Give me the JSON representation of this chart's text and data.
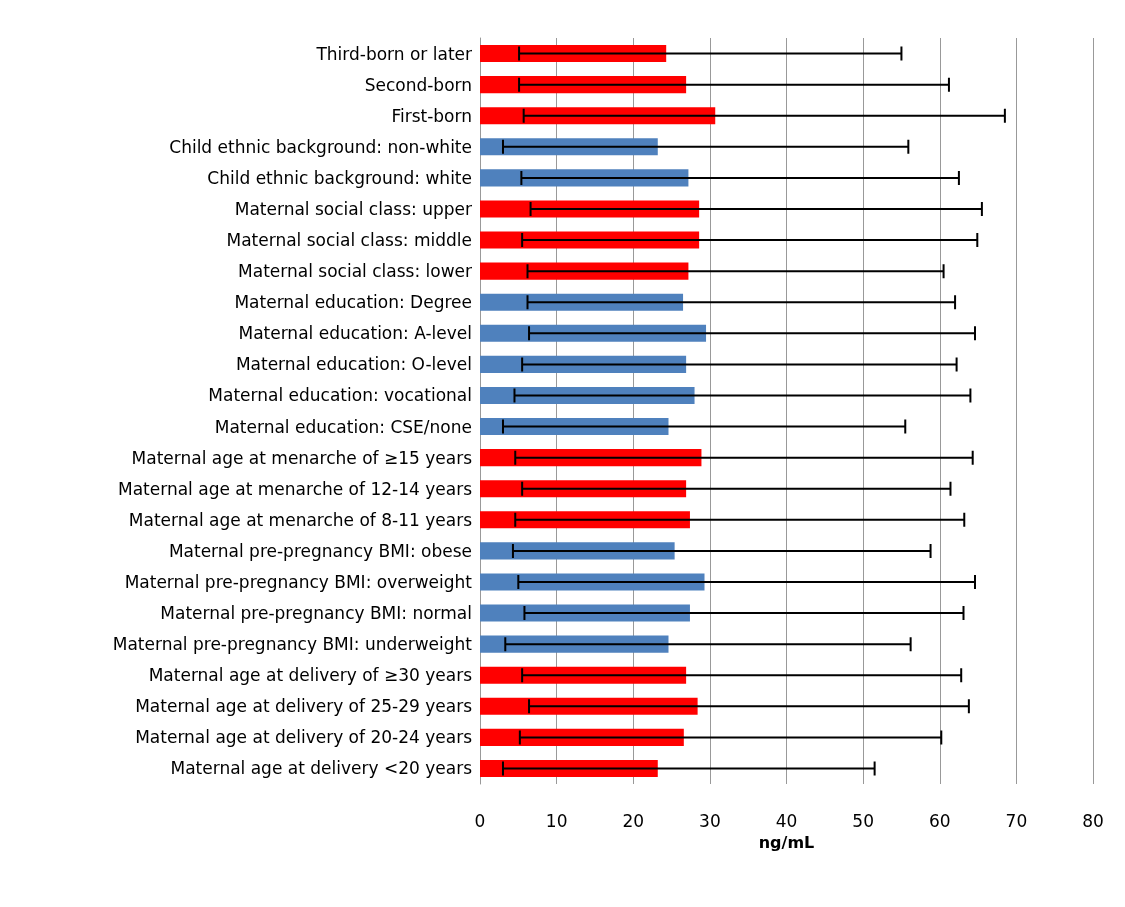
{
  "chart_data": {
    "type": "bar",
    "orientation": "horizontal",
    "xlabel": "ng/mL",
    "categories": [
      "Third-born or later",
      "Second-born",
      "First-born",
      "Child ethnic background: non-white",
      "Child ethnic background: white",
      "Maternal social class: upper",
      "Maternal social class: middle",
      "Maternal social class: lower",
      "Maternal education: Degree",
      "Maternal education: A-level",
      "Maternal education: O-level",
      "Maternal education: vocational",
      "Maternal education: CSE/none",
      "Maternal age at menarche of ≥15 years",
      "Maternal age at menarche of 12-14 years",
      "Maternal age at menarche of 8-11 years",
      "Maternal pre-pregnancy BMI: obese",
      "Maternal pre-pregnancy BMI: overweight",
      "Maternal pre-pregnancy BMI: normal",
      "Maternal pre-pregnancy BMI: underweight",
      "Maternal age at delivery of ≥30 years",
      "Maternal age at delivery of 25-29 years",
      "Maternal age at delivery of 20-24 years",
      "Maternal age at delivery <20 years"
    ],
    "values": [
      24.3,
      26.9,
      30.7,
      23.2,
      27.2,
      28.6,
      28.6,
      27.2,
      26.5,
      29.5,
      26.9,
      28.0,
      24.6,
      28.9,
      26.9,
      27.4,
      25.4,
      29.3,
      27.4,
      24.6,
      26.9,
      28.4,
      26.6,
      23.2
    ],
    "colors": [
      "#ff0000",
      "#ff0000",
      "#ff0000",
      "#4f81bd",
      "#4f81bd",
      "#ff0000",
      "#ff0000",
      "#ff0000",
      "#4f81bd",
      "#4f81bd",
      "#4f81bd",
      "#4f81bd",
      "#4f81bd",
      "#ff0000",
      "#ff0000",
      "#ff0000",
      "#4f81bd",
      "#4f81bd",
      "#4f81bd",
      "#4f81bd",
      "#ff0000",
      "#ff0000",
      "#ff0000",
      "#ff0000"
    ],
    "errors": [
      [
        5.1,
        55.0
      ],
      [
        5.1,
        61.2
      ],
      [
        5.7,
        68.5
      ],
      [
        3.0,
        55.9
      ],
      [
        5.4,
        62.5
      ],
      [
        6.6,
        65.5
      ],
      [
        5.5,
        64.9
      ],
      [
        6.2,
        60.5
      ],
      [
        6.2,
        62.0
      ],
      [
        6.4,
        64.6
      ],
      [
        5.5,
        62.2
      ],
      [
        4.5,
        64.0
      ],
      [
        3.0,
        55.5
      ],
      [
        4.6,
        64.3
      ],
      [
        5.5,
        61.4
      ],
      [
        4.6,
        63.2
      ],
      [
        4.3,
        58.8
      ],
      [
        5.0,
        64.6
      ],
      [
        5.8,
        63.1
      ],
      [
        3.3,
        56.2
      ],
      [
        5.5,
        62.8
      ],
      [
        6.4,
        63.8
      ],
      [
        5.2,
        60.2
      ],
      [
        3.0,
        51.5
      ]
    ],
    "xlim": [
      0,
      80
    ],
    "xticks": [
      0,
      10,
      20,
      30,
      40,
      50,
      60,
      70,
      80
    ],
    "grid": "x"
  }
}
